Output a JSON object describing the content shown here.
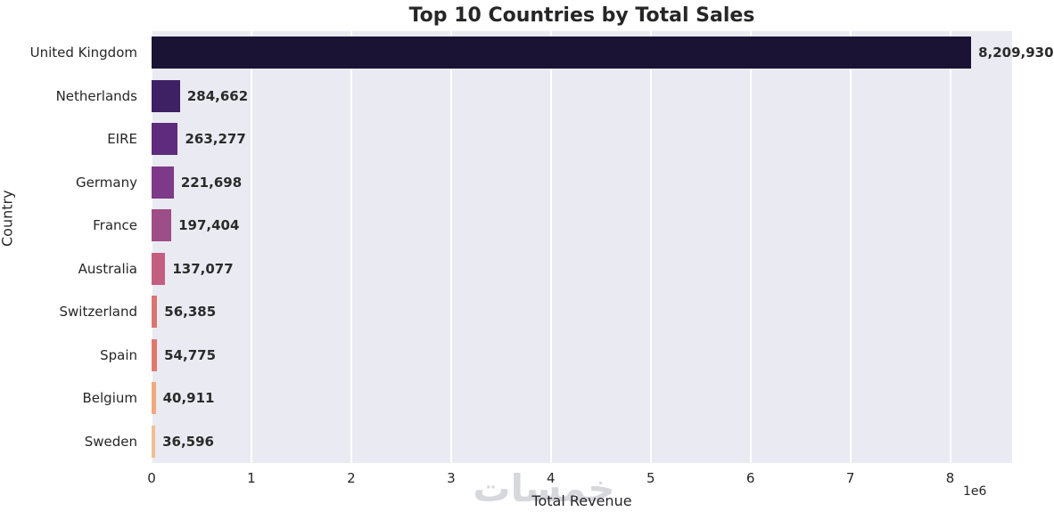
{
  "chart_data": {
    "type": "bar",
    "orientation": "horizontal",
    "title": "Top 10 Countries by Total Sales",
    "xlabel": "Total Revenue",
    "ylabel": "Country",
    "x_offset_label": "1e6",
    "xlim": [
      0,
      8620000
    ],
    "x_tick_unit": 1000000,
    "x_ticks": [
      0,
      1,
      2,
      3,
      4,
      5,
      6,
      7,
      8
    ],
    "x_tick_labels": [
      "0",
      "1",
      "2",
      "3",
      "4",
      "5",
      "6",
      "7",
      "8"
    ],
    "grid": true,
    "legend_position": "none",
    "plot_bg_color": "#eaeaf2",
    "grid_color": "#ffffff",
    "categories": [
      "United Kingdom",
      "Netherlands",
      "EIRE",
      "Germany",
      "France",
      "Australia",
      "Switzerland",
      "Spain",
      "Belgium",
      "Sweden"
    ],
    "values": [
      8209930,
      284662,
      263277,
      221698,
      197404,
      137077,
      56385,
      54775,
      40911,
      36596
    ],
    "value_labels": [
      "8,209,930",
      "284,662",
      "263,277",
      "221,698",
      "197,404",
      "137,077",
      "56,385",
      "54,775",
      "40,911",
      "36,596"
    ],
    "bar_colors": [
      "#1b1334",
      "#3e2165",
      "#5e2b7e",
      "#7d3a88",
      "#9d4d87",
      "#c25e7f",
      "#d97672",
      "#e0786d",
      "#f0a87f",
      "#f5bd92"
    ]
  },
  "watermark": {
    "text": "خمسات",
    "color": "#d7d7de"
  }
}
